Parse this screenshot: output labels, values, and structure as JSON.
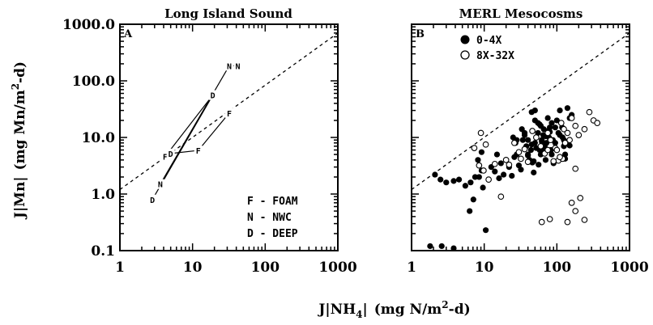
{
  "chart_data": [
    {
      "type": "line",
      "title": "Long Island Sound",
      "panel_label": "A",
      "x_scale": "log",
      "y_scale": "log",
      "xlim": [
        1,
        1000
      ],
      "ylim": [
        0.1,
        1000
      ],
      "x_ticks": [
        "1",
        "10",
        "100",
        "1000"
      ],
      "y_ticks": [
        "0.1",
        "1.0",
        "10.0",
        "100.0",
        "1000.0"
      ],
      "reference_line": {
        "style": "dashed",
        "x": [
          1,
          1000
        ],
        "y": [
          1.2,
          700
        ]
      },
      "series": [
        {
          "marker": "F",
          "points": [
            {
              "x": 4.2,
              "y": 4.6
            },
            {
              "x": 12,
              "y": 5.9
            },
            {
              "x": 32,
              "y": 27
            }
          ]
        },
        {
          "marker": "N",
          "points": [
            {
              "x": 3.6,
              "y": 1.5
            },
            {
              "x": 32,
              "y": 185
            },
            {
              "x": 42,
              "y": 185
            }
          ]
        },
        {
          "marker": "D",
          "points": [
            {
              "x": 2.8,
              "y": 0.8
            },
            {
              "x": 5,
              "y": 5.2
            },
            {
              "x": 19,
              "y": 56
            }
          ]
        }
      ],
      "segments": [
        {
          "from": {
            "x": 2.8,
            "y": 0.8
          },
          "to": {
            "x": 19,
            "y": 56
          }
        },
        {
          "from": {
            "x": 3.6,
            "y": 1.5
          },
          "to": {
            "x": 32,
            "y": 185
          }
        },
        {
          "from": {
            "x": 4.2,
            "y": 4.6
          },
          "to": {
            "x": 19,
            "y": 56
          }
        },
        {
          "from": {
            "x": 4.2,
            "y": 4.6
          },
          "to": {
            "x": 5,
            "y": 5.2
          }
        },
        {
          "from": {
            "x": 5,
            "y": 5.2
          },
          "to": {
            "x": 12,
            "y": 5.9
          }
        },
        {
          "from": {
            "x": 12,
            "y": 5.9
          },
          "to": {
            "x": 32,
            "y": 27
          }
        },
        {
          "from": {
            "x": 32,
            "y": 185
          },
          "to": {
            "x": 42,
            "y": 185
          }
        }
      ],
      "legend": {
        "position": "bottom-right",
        "entries": [
          "F - FOAM",
          "N - NWC",
          "D - DEEP"
        ]
      }
    },
    {
      "type": "scatter",
      "title": "MERL Mesocosms",
      "panel_label": "B",
      "x_scale": "log",
      "y_scale": "log",
      "xlim": [
        1,
        1000
      ],
      "ylim": [
        0.1,
        1000
      ],
      "x_ticks": [
        "1",
        "10",
        "100",
        "1000"
      ],
      "y_ticks": [
        "0.1",
        "1.0",
        "10.0",
        "100.0",
        "1000.0"
      ],
      "reference_line": {
        "style": "dashed",
        "x": [
          1,
          1000
        ],
        "y": [
          1.2,
          700
        ]
      },
      "legend": {
        "position": "top-left",
        "entries": [
          "0-4X",
          "8X-32X"
        ]
      },
      "series": [
        {
          "name": "0-4X",
          "marker": "filled-circle",
          "x": [
            1.8,
            2.6,
            3.8,
            2.1,
            2.5,
            3.0,
            3.8,
            4.5,
            5.5,
            6.5,
            7.5,
            6.3,
            7.1,
            8.5,
            9.6,
            10.5,
            9.2,
            12.5,
            14,
            16,
            18.5,
            15,
            17,
            20,
            22,
            24,
            26,
            28,
            30,
            32,
            25,
            27,
            34,
            36,
            38,
            40,
            42,
            44,
            46,
            48,
            50,
            52,
            55,
            58,
            60,
            62,
            65,
            68,
            70,
            72,
            75,
            78,
            80,
            83,
            85,
            88,
            90,
            95,
            100,
            105,
            110,
            118,
            125,
            130,
            140,
            150,
            160,
            45,
            50,
            55,
            60,
            33,
            36,
            40,
            45,
            52,
            62,
            70,
            80,
            95,
            110,
            125,
            50,
            58,
            66,
            75,
            85,
            28,
            30,
            40,
            48,
            56,
            65,
            150,
            130,
            120,
            8.2,
            9.2
          ],
          "y": [
            0.12,
            0.12,
            0.11,
            2.2,
            1.8,
            1.6,
            1.7,
            1.8,
            1.4,
            1.6,
            2.0,
            0.5,
            0.8,
            2.0,
            1.3,
            0.23,
            2.6,
            3.0,
            2.5,
            1.9,
            2.2,
            5.0,
            3.5,
            4.0,
            3.0,
            2.1,
            4.5,
            5.0,
            3.2,
            2.7,
            10,
            8,
            9,
            12,
            7,
            5,
            4,
            6,
            3.6,
            2.4,
            8,
            10,
            12,
            6,
            5,
            9,
            11,
            7,
            4,
            8,
            13,
            10,
            15,
            6,
            5,
            9,
            3.5,
            8,
            20,
            12,
            30,
            15,
            7,
            5,
            33,
            22,
            25,
            28,
            30,
            18,
            16,
            14,
            11,
            9,
            7.5,
            6.5,
            8.5,
            10.5,
            12.5,
            15,
            11,
            9,
            20,
            17,
            14,
            22,
            18,
            9,
            5.5,
            4.8,
            3.8,
            3.3,
            5.8,
            7.2,
            4.2,
            10,
            4.0,
            5.5
          ],
          "y_fix": []
        },
        {
          "name": "8X-32X",
          "marker": "open-circle",
          "x": [
            7.3,
            9.0,
            10.5,
            8.5,
            11.5,
            9.8,
            14,
            17,
            20,
            22,
            26,
            30,
            32,
            36,
            40,
            46,
            52,
            60,
            68,
            75,
            82,
            95,
            105,
            115,
            125,
            140,
            160,
            180,
            200,
            240,
            280,
            320,
            360,
            150,
            130,
            90,
            75,
            120,
            180,
            210,
            62,
            80,
            140,
            240,
            160,
            180,
            110,
            100
          ],
          "y": [
            6.5,
            12,
            7.5,
            3.2,
            1.8,
            2.6,
            3.4,
            0.9,
            4.0,
            3.3,
            8,
            5.5,
            4.2,
            6.2,
            3.7,
            13,
            10,
            7,
            5.2,
            12,
            9,
            6.5,
            3.9,
            18,
            14,
            12,
            22,
            16,
            11,
            14,
            28,
            20,
            18,
            9,
            8,
            3.8,
            6,
            4.2,
            2.8,
            0.85,
            0.32,
            0.36,
            0.32,
            0.35,
            0.7,
            0.5,
            4.5,
            6.0
          ]
        }
      ]
    }
  ],
  "shared": {
    "y_label": "J[Mn] (mg Mn/m²-d)",
    "y_label_parts": {
      "main": "J",
      "bracket_open": "|",
      "name": "Mn",
      "bracket_close": "|",
      "paren": "(mg Mn/m",
      "sup": "2",
      "rest": "-d)"
    },
    "x_label": "J[NH4] (mg N/m²-d)",
    "x_label_parts": {
      "main": "J",
      "bracket_open": "|",
      "name": "NH",
      "sub": "4",
      "bracket_close": "|",
      "paren": "(mg N/m",
      "sup": "2",
      "rest": "-d)"
    }
  }
}
